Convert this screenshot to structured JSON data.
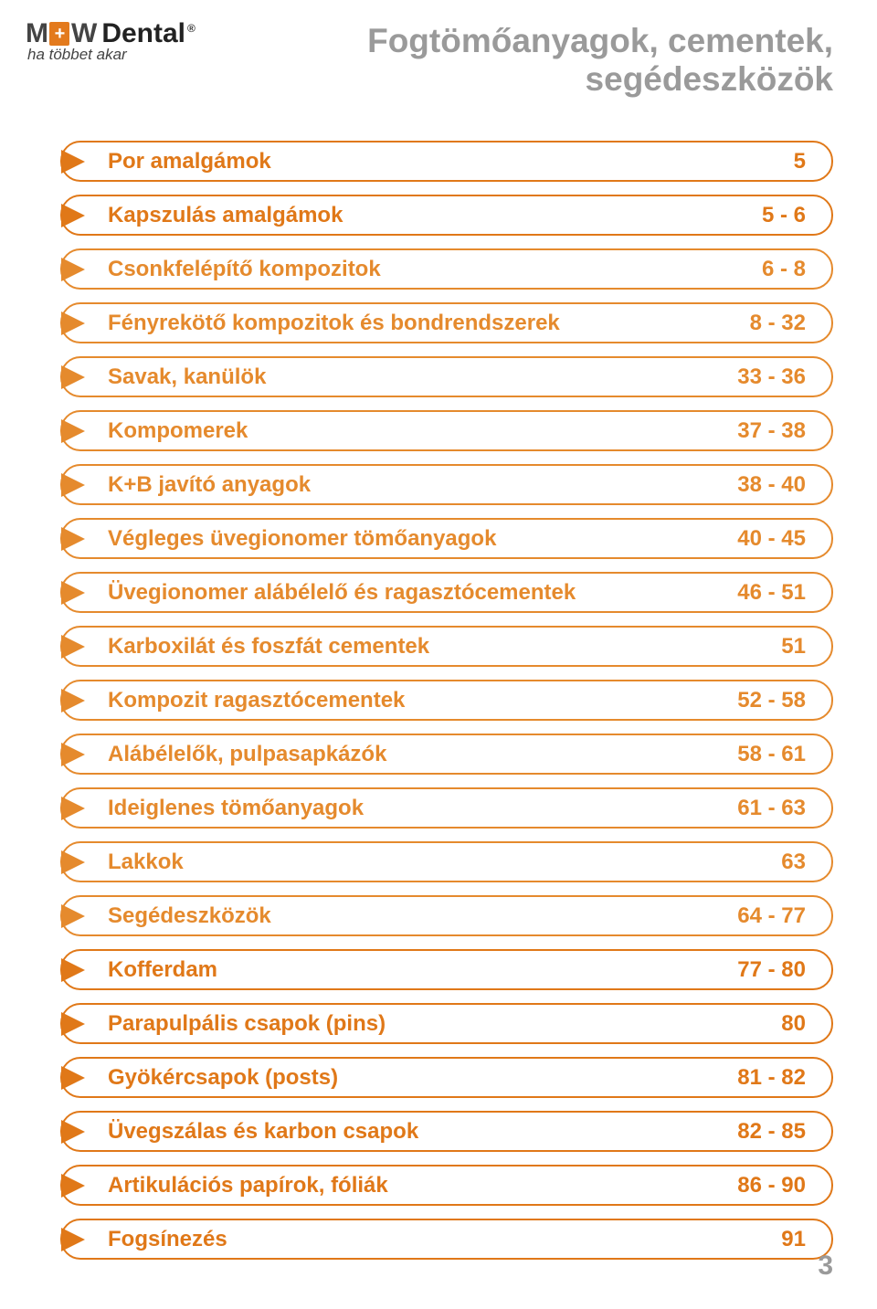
{
  "logo": {
    "mw_left": "M",
    "mw_right": "W",
    "plus": "+",
    "dental": "Dental",
    "reg": "®",
    "tagline": "ha többet akar"
  },
  "title": "Fogtömőanyagok, cementek, segédeszközök",
  "items": [
    {
      "label": "Por amalgámok",
      "page": "5",
      "color": "#e07818"
    },
    {
      "label": "Kapszulás amalgámok",
      "page": "5 - 6",
      "color": "#e07818"
    },
    {
      "label": "Csonkfelépítő kompozitok",
      "page": "6 - 8",
      "color": "#e58a2d"
    },
    {
      "label": "Fényrekötő kompozitok és bondrendszerek",
      "page": "8 - 32",
      "color": "#e58a2d"
    },
    {
      "label": "Savak, kanülök",
      "page": "33 - 36",
      "color": "#e58a2d"
    },
    {
      "label": "Kompomerek",
      "page": "37 - 38",
      "color": "#e58a2d"
    },
    {
      "label": "K+B javító anyagok",
      "page": "38 - 40",
      "color": "#e58a2d"
    },
    {
      "label": "Végleges üvegionomer tömőanyagok",
      "page": "40 - 45",
      "color": "#e58a2d"
    },
    {
      "label": "Üvegionomer alábélelő és ragasztócementek",
      "page": "46 - 51",
      "color": "#e58a2d"
    },
    {
      "label": "Karboxilát és foszfát cementek",
      "page": "51",
      "color": "#e58a2d"
    },
    {
      "label": "Kompozit ragasztócementek",
      "page": "52 - 58",
      "color": "#e58a2d"
    },
    {
      "label": "Alábélelők, pulpasapkázók",
      "page": "58 - 61",
      "color": "#e58a2d"
    },
    {
      "label": "Ideiglenes tömőanyagok",
      "page": "61 - 63",
      "color": "#e58a2d"
    },
    {
      "label": "Lakkok",
      "page": "63",
      "color": "#e58a2d"
    },
    {
      "label": "Segédeszközök",
      "page": "64 - 77",
      "color": "#e58a2d"
    },
    {
      "label": "Kofferdam",
      "page": "77 - 80",
      "color": "#e07818"
    },
    {
      "label": "Parapulpális csapok (pins)",
      "page": "80",
      "color": "#e07818"
    },
    {
      "label": "Gyökércsapok (posts)",
      "page": "81 - 82",
      "color": "#e07818"
    },
    {
      "label": "Üvegszálas és karbon csapok",
      "page": "82 - 85",
      "color": "#e07818"
    },
    {
      "label": "Artikulációs papírok, fóliák",
      "page": "86 - 90",
      "color": "#e07818"
    },
    {
      "label": "Fogsínezés",
      "page": "91",
      "color": "#e07818"
    }
  ],
  "page_number": "3",
  "styling": {
    "background": "#ffffff",
    "title_color": "#9a9a9a",
    "title_fontsize": 37,
    "pill_height": 45,
    "pill_radius": 22,
    "pill_border_width": 2,
    "pill_fontsize": 24,
    "pill_gap": 14,
    "page_number_color": "#9a9a9a",
    "page_number_fontsize": 30
  }
}
